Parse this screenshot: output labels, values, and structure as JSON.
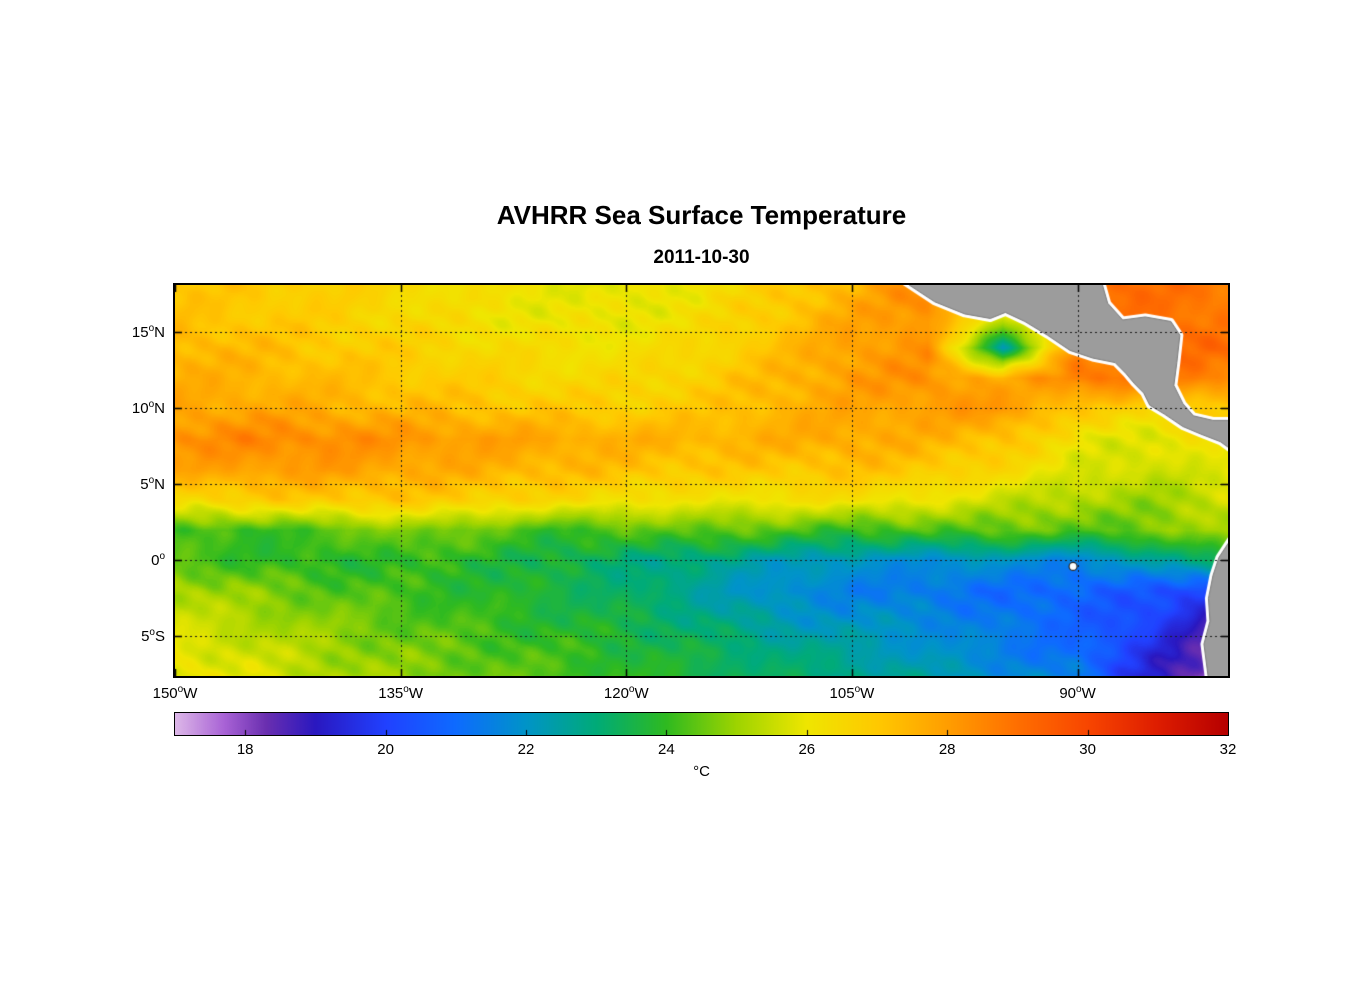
{
  "title": "AVHRR Sea Surface Temperature",
  "subtitle": "2011-10-30",
  "map": {
    "lon_min": -150,
    "lon_max": -80,
    "lat_min": -7.6,
    "lat_max": 18.1,
    "xticks": [
      {
        "lon": -150,
        "label": "150°W"
      },
      {
        "lon": -135,
        "label": "135°W"
      },
      {
        "lon": -120,
        "label": "120°W"
      },
      {
        "lon": -105,
        "label": "105°W"
      },
      {
        "lon": -90,
        "label": "90°W"
      }
    ],
    "yticks": [
      {
        "lat": 15,
        "label": "15°N"
      },
      {
        "lat": 10,
        "label": "10°N"
      },
      {
        "lat": 5,
        "label": "5°N"
      },
      {
        "lat": 0,
        "label": "0°"
      },
      {
        "lat": -5,
        "label": "5°S"
      }
    ],
    "land_color": "#9c9c9c",
    "land_edge_color": "#7a7a7a",
    "coast_halo_color": "#ffffff",
    "grid_color": "#1a1a1a"
  },
  "colorbar": {
    "label": "°C",
    "min": 17,
    "max": 32,
    "ticks": [
      18,
      20,
      22,
      24,
      26,
      28,
      30,
      32
    ],
    "stops": [
      [
        17.0,
        "#DDB8E8"
      ],
      [
        17.7,
        "#A963D6"
      ],
      [
        18.3,
        "#6A2FB0"
      ],
      [
        19.0,
        "#2A18C0"
      ],
      [
        20.0,
        "#2141FF"
      ],
      [
        21.0,
        "#0E6BFF"
      ],
      [
        22.0,
        "#0094C8"
      ],
      [
        23.0,
        "#00AB78"
      ],
      [
        24.0,
        "#2FBA20"
      ],
      [
        25.0,
        "#9ED400"
      ],
      [
        26.0,
        "#EFE600"
      ],
      [
        27.0,
        "#FFC900"
      ],
      [
        28.0,
        "#FF9E00"
      ],
      [
        29.0,
        "#FF6F00"
      ],
      [
        30.0,
        "#F84600"
      ],
      [
        31.0,
        "#DE1D00"
      ],
      [
        32.0,
        "#B60000"
      ]
    ]
  },
  "chart_data": {
    "type": "heatmap",
    "title": "AVHRR Sea Surface Temperature",
    "date": "2011-10-30",
    "units": "°C",
    "xlabel_ticks": [
      "150°W",
      "135°W",
      "120°W",
      "105°W",
      "90°W"
    ],
    "ylabel_ticks": [
      "15°N",
      "10°N",
      "5°N",
      "0°",
      "5°S"
    ],
    "value_range": [
      17,
      32
    ],
    "x_lons": [
      -150,
      -145,
      -140,
      -135,
      -130,
      -125,
      -120,
      -115,
      -110,
      -105,
      -100,
      -95,
      -90,
      -85,
      -80
    ],
    "y_lats": [
      18,
      16,
      14,
      12,
      10,
      8,
      6,
      4,
      2,
      0,
      -2,
      -4,
      -6,
      -8
    ],
    "sst_c": [
      [
        27.0,
        27.0,
        26.8,
        26.5,
        26.2,
        26.0,
        25.8,
        26.2,
        26.8,
        27.5,
        28.5,
        29.0,
        29.2,
        29.0,
        28.8
      ],
      [
        27.2,
        27.0,
        26.8,
        26.5,
        26.2,
        26.0,
        26.0,
        26.3,
        27.0,
        27.8,
        28.3,
        25.5,
        28.8,
        29.0,
        28.8
      ],
      [
        27.5,
        27.3,
        27.0,
        26.8,
        26.5,
        26.3,
        26.2,
        26.5,
        27.2,
        28.0,
        28.2,
        22.5,
        28.6,
        29.2,
        29.0
      ],
      [
        27.6,
        27.5,
        27.3,
        27.0,
        26.8,
        26.5,
        26.5,
        26.8,
        27.4,
        28.0,
        28.3,
        27.5,
        28.8,
        29.0,
        28.5
      ],
      [
        27.8,
        27.8,
        27.6,
        27.4,
        27.2,
        27.0,
        26.8,
        27.0,
        27.5,
        27.8,
        28.0,
        28.2,
        27.0,
        26.5,
        27.0
      ],
      [
        28.3,
        28.5,
        28.4,
        28.2,
        28.0,
        27.8,
        27.6,
        27.5,
        27.6,
        27.8,
        27.5,
        27.2,
        26.0,
        25.8,
        26.2
      ],
      [
        27.8,
        28.0,
        28.0,
        27.8,
        27.6,
        27.4,
        27.2,
        27.0,
        27.0,
        27.2,
        27.0,
        26.5,
        25.8,
        25.5,
        26.0
      ],
      [
        26.5,
        26.8,
        27.0,
        27.0,
        26.8,
        26.5,
        26.3,
        26.0,
        26.2,
        26.3,
        26.0,
        25.5,
        25.2,
        25.0,
        25.5
      ],
      [
        24.2,
        24.0,
        24.3,
        24.8,
        24.5,
        24.0,
        24.3,
        24.5,
        24.3,
        24.0,
        24.2,
        24.5,
        24.3,
        24.6,
        25.2
      ],
      [
        24.3,
        24.0,
        23.8,
        24.0,
        23.8,
        23.5,
        23.0,
        22.8,
        22.3,
        22.0,
        21.8,
        22.0,
        21.5,
        22.5,
        23.5
      ],
      [
        25.3,
        24.8,
        24.4,
        24.1,
        23.9,
        23.6,
        23.2,
        22.5,
        21.8,
        21.5,
        21.3,
        21.0,
        20.8,
        20.5,
        19.5
      ],
      [
        25.6,
        25.2,
        24.8,
        24.4,
        24.1,
        23.8,
        23.5,
        23.0,
        22.3,
        22.0,
        21.8,
        21.3,
        20.8,
        20.0,
        18.5
      ],
      [
        26.0,
        25.6,
        25.1,
        24.7,
        24.4,
        24.1,
        23.8,
        23.4,
        23.0,
        22.5,
        22.0,
        21.5,
        21.0,
        19.5,
        17.8
      ],
      [
        26.2,
        25.8,
        25.3,
        24.9,
        24.6,
        24.3,
        24.0,
        23.6,
        23.2,
        23.0,
        22.5,
        22.0,
        21.5,
        19.0,
        17.3
      ]
    ]
  },
  "land": {
    "mexico_central_america": [
      [
        -101.5,
        18.3
      ],
      [
        -99.5,
        17.0
      ],
      [
        -97.5,
        16.2
      ],
      [
        -95.8,
        15.9
      ],
      [
        -94.8,
        16.3
      ],
      [
        -93.5,
        15.7
      ],
      [
        -92.0,
        14.8
      ],
      [
        -90.5,
        13.8
      ],
      [
        -89.0,
        13.3
      ],
      [
        -87.5,
        13.0
      ],
      [
        -86.8,
        12.3
      ],
      [
        -86.2,
        11.6
      ],
      [
        -85.6,
        11.0
      ],
      [
        -85.2,
        10.2
      ],
      [
        -84.2,
        9.6
      ],
      [
        -83.0,
        8.8
      ],
      [
        -81.8,
        8.3
      ],
      [
        -80.5,
        7.8
      ],
      [
        -79.8,
        7.3
      ],
      [
        -79.8,
        9.2
      ],
      [
        -81.0,
        9.2
      ],
      [
        -82.3,
        9.5
      ],
      [
        -83.0,
        10.3
      ],
      [
        -83.6,
        11.5
      ],
      [
        -83.4,
        13.0
      ],
      [
        -83.2,
        14.8
      ],
      [
        -83.8,
        15.7
      ],
      [
        -85.5,
        16.0
      ],
      [
        -87.0,
        15.8
      ],
      [
        -88.0,
        16.9
      ],
      [
        -88.4,
        18.3
      ]
    ],
    "south_america": [
      [
        -79.8,
        1.4
      ],
      [
        -80.6,
        0.2
      ],
      [
        -81.0,
        -1.0
      ],
      [
        -81.3,
        -2.5
      ],
      [
        -81.2,
        -4.0
      ],
      [
        -81.6,
        -5.5
      ],
      [
        -81.3,
        -7.8
      ],
      [
        -79.8,
        -7.8
      ]
    ]
  },
  "islands": {
    "galapagos": [
      -90.3,
      -0.4
    ]
  }
}
